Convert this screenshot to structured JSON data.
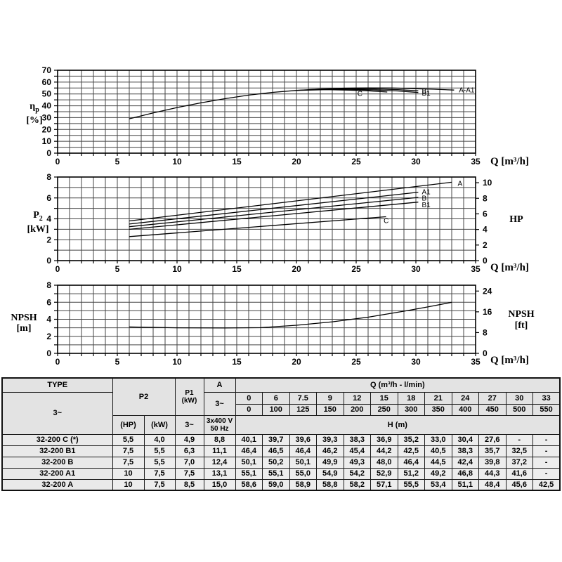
{
  "chart_data": [
    {
      "type": "line",
      "name": "pump-efficiency-chart",
      "ylabel_main": "η",
      "ylabel_sub": "p",
      "ylabel_unit": "[%]",
      "xlabel": "Q [m³/h]",
      "xlim": [
        0,
        35
      ],
      "ylim": [
        0,
        70
      ],
      "grid_x_step": 1,
      "grid_y_step": 5,
      "x_ticks": [
        0,
        5,
        10,
        15,
        20,
        25,
        30,
        35
      ],
      "y_ticks": [
        0,
        10,
        20,
        30,
        40,
        50,
        60,
        70
      ],
      "series": [
        {
          "name": "A-A1",
          "points": [
            [
              6,
              29
            ],
            [
              8,
              34
            ],
            [
              10,
              38.5
            ],
            [
              12,
              42.5
            ],
            [
              14,
              46
            ],
            [
              16,
              49
            ],
            [
              18,
              51.3
            ],
            [
              20,
              53
            ],
            [
              22,
              54.2
            ],
            [
              24,
              54.9
            ],
            [
              26,
              55.1
            ],
            [
              28,
              55
            ],
            [
              30,
              54.4
            ],
            [
              31.5,
              54
            ],
            [
              33.2,
              53.3
            ]
          ]
        },
        {
          "name": "B",
          "points": [
            [
              21,
              53.7
            ],
            [
              24,
              54.3
            ],
            [
              26.5,
              54.2
            ],
            [
              28.5,
              53.6
            ],
            [
              30.2,
              52.6
            ]
          ]
        },
        {
          "name": "B1",
          "points": [
            [
              21,
              53.6
            ],
            [
              24,
              54.0
            ],
            [
              26.5,
              53.4
            ],
            [
              28.5,
              52.5
            ],
            [
              30.2,
              51.2
            ]
          ]
        },
        {
          "name": "C",
          "points": [
            [
              20,
              53.0
            ],
            [
              22.5,
              53.6
            ],
            [
              24.5,
              53.2
            ],
            [
              26,
              52.7
            ],
            [
              27.6,
              51.6
            ]
          ]
        }
      ],
      "curve_labels": [
        {
          "text": "A-A1",
          "x": 33.6,
          "y": 53.2
        },
        {
          "text": "B",
          "x": 30.5,
          "y": 52.3
        },
        {
          "text": "B1",
          "x": 30.5,
          "y": 50.5
        },
        {
          "text": "C",
          "x": 25.1,
          "y": 50.0
        }
      ]
    },
    {
      "type": "line",
      "name": "pump-power-chart",
      "ylabel_main": "P",
      "ylabel_sub": "2",
      "ylabel_unit": "[kW]",
      "xlabel": "Q [m³/h]",
      "right_axis": {
        "label": "HP",
        "ticks": [
          0,
          2,
          4,
          6,
          8,
          10
        ],
        "factor": 0.7457
      },
      "xlim": [
        0,
        35
      ],
      "ylim": [
        0,
        8
      ],
      "grid_x_step": 1,
      "grid_y_step": 1,
      "x_ticks": [
        0,
        5,
        10,
        15,
        20,
        25,
        30,
        35
      ],
      "y_ticks": [
        0,
        2,
        4,
        6,
        8
      ],
      "series": [
        {
          "name": "A",
          "points": [
            [
              6,
              3.8
            ],
            [
              33,
              7.5
            ]
          ]
        },
        {
          "name": "A1",
          "points": [
            [
              6,
              3.5
            ],
            [
              30.2,
              6.55
            ]
          ]
        },
        {
          "name": "B",
          "points": [
            [
              6,
              3.25
            ],
            [
              30.2,
              6.05
            ]
          ]
        },
        {
          "name": "B1",
          "points": [
            [
              6,
              3.0
            ],
            [
              30.2,
              5.6
            ]
          ]
        },
        {
          "name": "C",
          "points": [
            [
              6,
              2.3
            ],
            [
              27.5,
              4.2
            ]
          ]
        }
      ],
      "curve_labels": [
        {
          "text": "A",
          "x": 33.5,
          "y": 7.35
        },
        {
          "text": "A1",
          "x": 30.5,
          "y": 6.55
        },
        {
          "text": "B",
          "x": 30.5,
          "y": 5.95
        },
        {
          "text": "B1",
          "x": 30.5,
          "y": 5.3
        },
        {
          "text": "C",
          "x": 27.3,
          "y": 3.8
        }
      ]
    },
    {
      "type": "line",
      "name": "pump-npsh-chart",
      "ylabel_main": "NPSH",
      "ylabel_sub": "",
      "ylabel_unit": "[m]",
      "xlabel": "Q [m³/h]",
      "y2label_line1": "NPSH",
      "y2label_line2": "[ft]",
      "right_axis": {
        "label": "NPSH [ft]",
        "ticks": [
          0,
          8,
          16,
          24
        ],
        "factor": 0.3048
      },
      "xlim": [
        0,
        35
      ],
      "ylim": [
        0,
        8
      ],
      "grid_x_step": 1,
      "grid_y_step": 1,
      "x_ticks": [
        0,
        5,
        10,
        15,
        20,
        25,
        30,
        35
      ],
      "y_ticks": [
        0,
        2,
        4,
        6,
        8
      ],
      "series": [
        {
          "name": "NPSH",
          "points": [
            [
              6,
              3.1
            ],
            [
              10,
              3.0
            ],
            [
              14,
              2.98
            ],
            [
              17,
              3.02
            ],
            [
              20,
              3.3
            ],
            [
              23,
              3.7
            ],
            [
              26,
              4.25
            ],
            [
              29,
              4.95
            ],
            [
              31,
              5.45
            ],
            [
              33,
              6.0
            ]
          ]
        }
      ],
      "curve_labels": []
    }
  ],
  "table": {
    "header": {
      "type_label": "TYPE",
      "phase_label": "3~",
      "p2_label": "P2",
      "p1_label_l1": "P1",
      "p1_label_l2": "(kW)",
      "a_label": "A",
      "a_phase_label": "3~",
      "hp_label": "(HP)",
      "kw_label": "(kW)",
      "p1_phase_label": "3~",
      "voltage_l1": "3x400 V",
      "voltage_l2": "50 Hz",
      "q_header": "Q (m³/h - l/min)",
      "q_m3h": [
        "0",
        "6",
        "7.5",
        "9",
        "12",
        "15",
        "18",
        "21",
        "24",
        "27",
        "30",
        "33"
      ],
      "q_lmin": [
        "0",
        "100",
        "125",
        "150",
        "200",
        "250",
        "300",
        "350",
        "400",
        "450",
        "500",
        "550"
      ],
      "h_header": "H (m)"
    },
    "rows": [
      {
        "type": "32-200 C (*)",
        "hp": "5,5",
        "kw": "4,0",
        "p1": "4,9",
        "a": "8,8",
        "h": [
          "40,1",
          "39,7",
          "39,6",
          "39,3",
          "38,3",
          "36,9",
          "35,2",
          "33,0",
          "30,4",
          "27,6",
          "-",
          "-"
        ]
      },
      {
        "type": "32-200 B1",
        "hp": "7,5",
        "kw": "5,5",
        "p1": "6,3",
        "a": "11,1",
        "h": [
          "46,4",
          "46,5",
          "46,4",
          "46,2",
          "45,4",
          "44,2",
          "42,5",
          "40,5",
          "38,3",
          "35,7",
          "32,5",
          "-"
        ]
      },
      {
        "type": "32-200 B",
        "hp": "7,5",
        "kw": "5,5",
        "p1": "7,0",
        "a": "12,4",
        "h": [
          "50,1",
          "50,2",
          "50,1",
          "49,9",
          "49,3",
          "48,0",
          "46,4",
          "44,5",
          "42,4",
          "39,8",
          "37,2",
          "-"
        ]
      },
      {
        "type": "32-200 A1",
        "hp": "10",
        "kw": "7,5",
        "p1": "7,5",
        "a": "13,1",
        "h": [
          "55,1",
          "55,1",
          "55,0",
          "54,9",
          "54,2",
          "52,9",
          "51,2",
          "49,2",
          "46,8",
          "44,3",
          "41,6",
          "-"
        ]
      },
      {
        "type": "32-200 A",
        "hp": "10",
        "kw": "7,5",
        "p1": "8,5",
        "a": "15,0",
        "h": [
          "58,6",
          "59,0",
          "58,9",
          "58,8",
          "58,2",
          "57,1",
          "55,5",
          "53,4",
          "51,1",
          "48,4",
          "45,6",
          "42,5"
        ]
      }
    ]
  }
}
